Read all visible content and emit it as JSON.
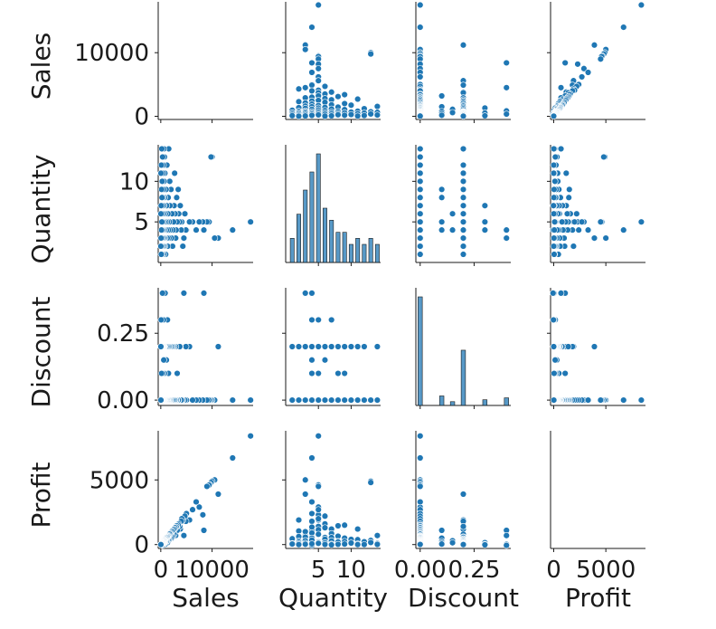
{
  "chart_data": {
    "type": "scatter",
    "chart_kind": "pairplot",
    "diagonal": "histogram",
    "color": "#1f77b4",
    "variables": [
      "Sales",
      "Quantity",
      "Discount",
      "Profit"
    ],
    "axes": {
      "Sales": {
        "range": [
          -500,
          18000
        ],
        "ticks": [
          0,
          10000
        ],
        "tick_labels": [
          "0",
          "10000"
        ]
      },
      "Quantity": {
        "range": [
          0,
          14.5
        ],
        "ticks": [
          5,
          10
        ],
        "tick_labels": [
          "5",
          "10"
        ]
      },
      "Discount": {
        "range": [
          -0.02,
          0.42
        ],
        "ticks": [
          0.0,
          0.25
        ],
        "tick_labels": [
          "0.00",
          "0.25"
        ]
      },
      "Profit": {
        "range": [
          -300,
          8800
        ],
        "ticks": [
          0,
          5000
        ],
        "tick_labels": [
          "0",
          "5000"
        ]
      }
    },
    "x_axis_labels": [
      "Sales",
      "Quantity",
      "Discount",
      "Profit"
    ],
    "y_axis_labels": [
      "Sales",
      "Quantity",
      "Discount",
      "Profit"
    ],
    "grid": false,
    "legend": "none",
    "points": [
      {
        "Sales": 17500,
        "Quantity": 5,
        "Discount": 0.0,
        "Profit": 8400
      },
      {
        "Sales": 14000,
        "Quantity": 4,
        "Discount": 0.0,
        "Profit": 6700
      },
      {
        "Sales": 11200,
        "Quantity": 3,
        "Discount": 0.2,
        "Profit": 3900
      },
      {
        "Sales": 10500,
        "Quantity": 3,
        "Discount": 0.0,
        "Profit": 5000
      },
      {
        "Sales": 10000,
        "Quantity": 13,
        "Discount": 0.0,
        "Profit": 4900
      },
      {
        "Sales": 9800,
        "Quantity": 13,
        "Discount": 0.0,
        "Profit": 4800
      },
      {
        "Sales": 9500,
        "Quantity": 5,
        "Discount": 0.0,
        "Profit": 4650
      },
      {
        "Sales": 9400,
        "Quantity": 5,
        "Discount": 0.0,
        "Profit": 4600
      },
      {
        "Sales": 9000,
        "Quantity": 5,
        "Discount": 0.0,
        "Profit": 4500
      },
      {
        "Sales": 8400,
        "Quantity": 4,
        "Discount": 0.4,
        "Profit": 1100
      },
      {
        "Sales": 8200,
        "Quantity": 5,
        "Discount": 0.0,
        "Profit": 2300
      },
      {
        "Sales": 7500,
        "Quantity": 5,
        "Discount": 0.0,
        "Profit": 2900
      },
      {
        "Sales": 6900,
        "Quantity": 4,
        "Discount": 0.0,
        "Profit": 3300
      },
      {
        "Sales": 6200,
        "Quantity": 5,
        "Discount": 0.0,
        "Profit": 2700
      },
      {
        "Sales": 5600,
        "Quantity": 5,
        "Discount": 0.2,
        "Profit": 1900
      },
      {
        "Sales": 5000,
        "Quantity": 4,
        "Discount": 0.0,
        "Profit": 2400
      },
      {
        "Sales": 4900,
        "Quantity": 4,
        "Discount": 0.2,
        "Profit": 1800
      },
      {
        "Sales": 4700,
        "Quantity": 6,
        "Discount": 0.0,
        "Profit": 2200
      },
      {
        "Sales": 4500,
        "Quantity": 3,
        "Discount": 0.4,
        "Profit": 700
      },
      {
        "Sales": 4300,
        "Quantity": 2,
        "Discount": 0.0,
        "Profit": 1900
      },
      {
        "Sales": 4100,
        "Quantity": 5,
        "Discount": 0.0,
        "Profit": 2000
      },
      {
        "Sales": 4000,
        "Quantity": 4,
        "Discount": 0.0,
        "Profit": 1800
      },
      {
        "Sales": 3800,
        "Quantity": 7,
        "Discount": 0.2,
        "Profit": 1200
      },
      {
        "Sales": 3700,
        "Quantity": 5,
        "Discount": 0.2,
        "Profit": 1400
      },
      {
        "Sales": 3500,
        "Quantity": 6,
        "Discount": 0.0,
        "Profit": 1600
      },
      {
        "Sales": 3400,
        "Quantity": 9,
        "Discount": 0.0,
        "Profit": 1500
      },
      {
        "Sales": 3200,
        "Quantity": 5,
        "Discount": 0.1,
        "Profit": 1100
      },
      {
        "Sales": 3100,
        "Quantity": 8,
        "Discount": 0.0,
        "Profit": 1450
      },
      {
        "Sales": 3000,
        "Quantity": 4,
        "Discount": 0.0,
        "Profit": 1350
      },
      {
        "Sales": 2900,
        "Quantity": 3,
        "Discount": 0.2,
        "Profit": 700
      },
      {
        "Sales": 2800,
        "Quantity": 6,
        "Discount": 0.0,
        "Profit": 1300
      },
      {
        "Sales": 2700,
        "Quantity": 11,
        "Discount": 0.0,
        "Profit": 1200
      },
      {
        "Sales": 2600,
        "Quantity": 7,
        "Discount": 0.2,
        "Profit": 800
      },
      {
        "Sales": 2500,
        "Quantity": 5,
        "Discount": 0.0,
        "Profit": 1150
      },
      {
        "Sales": 2400,
        "Quantity": 4,
        "Discount": 0.2,
        "Profit": 600
      },
      {
        "Sales": 2300,
        "Quantity": 2,
        "Discount": 0.0,
        "Profit": 1050
      },
      {
        "Sales": 2200,
        "Quantity": 6,
        "Discount": 0.2,
        "Profit": 550
      },
      {
        "Sales": 2100,
        "Quantity": 3,
        "Discount": 0.0,
        "Profit": 1000
      },
      {
        "Sales": 2000,
        "Quantity": 9,
        "Discount": 0.2,
        "Profit": 450
      },
      {
        "Sales": 1900,
        "Quantity": 4,
        "Discount": 0.0,
        "Profit": 900
      },
      {
        "Sales": 1800,
        "Quantity": 7,
        "Discount": 0.0,
        "Profit": 850
      },
      {
        "Sales": 1750,
        "Quantity": 10,
        "Discount": 0.2,
        "Profit": 400
      },
      {
        "Sales": 1700,
        "Quantity": 5,
        "Discount": 0.0,
        "Profit": 800
      },
      {
        "Sales": 1600,
        "Quantity": 3,
        "Discount": 0.2,
        "Profit": 350
      },
      {
        "Sales": 1550,
        "Quantity": 14,
        "Discount": 0.0,
        "Profit": 700
      },
      {
        "Sales": 1500,
        "Quantity": 4,
        "Discount": 0.1,
        "Profit": 500
      },
      {
        "Sales": 1450,
        "Quantity": 8,
        "Discount": 0.0,
        "Profit": 650
      },
      {
        "Sales": 1400,
        "Quantity": 6,
        "Discount": 0.2,
        "Profit": 300
      },
      {
        "Sales": 1350,
        "Quantity": 2,
        "Discount": 0.0,
        "Profit": 620
      },
      {
        "Sales": 1300,
        "Quantity": 5,
        "Discount": 0.3,
        "Profit": 150
      },
      {
        "Sales": 1250,
        "Quantity": 3,
        "Discount": 0.0,
        "Profit": 580
      },
      {
        "Sales": 1200,
        "Quantity": 12,
        "Discount": 0.2,
        "Profit": 250
      },
      {
        "Sales": 1150,
        "Quantity": 7,
        "Discount": 0.0,
        "Profit": 540
      },
      {
        "Sales": 1100,
        "Quantity": 4,
        "Discount": 0.15,
        "Profit": 300
      },
      {
        "Sales": 1050,
        "Quantity": 9,
        "Discount": 0.0,
        "Profit": 500
      },
      {
        "Sales": 1000,
        "Quantity": 5,
        "Discount": 0.2,
        "Profit": 200
      },
      {
        "Sales": 950,
        "Quantity": 1,
        "Discount": 0.0,
        "Profit": 450
      },
      {
        "Sales": 900,
        "Quantity": 6,
        "Discount": 0.0,
        "Profit": 420
      },
      {
        "Sales": 850,
        "Quantity": 3,
        "Discount": 0.4,
        "Profit": 20
      },
      {
        "Sales": 800,
        "Quantity": 11,
        "Discount": 0.0,
        "Profit": 380
      },
      {
        "Sales": 780,
        "Quantity": 2,
        "Discount": 0.2,
        "Profit": 150
      },
      {
        "Sales": 760,
        "Quantity": 8,
        "Discount": 0.1,
        "Profit": 250
      },
      {
        "Sales": 740,
        "Quantity": 4,
        "Discount": 0.0,
        "Profit": 350
      },
      {
        "Sales": 720,
        "Quantity": 13,
        "Discount": 0.0,
        "Profit": 320
      },
      {
        "Sales": 700,
        "Quantity": 5,
        "Discount": 0.2,
        "Profit": 120
      },
      {
        "Sales": 680,
        "Quantity": 3,
        "Discount": 0.0,
        "Profit": 300
      },
      {
        "Sales": 660,
        "Quantity": 10,
        "Discount": 0.2,
        "Profit": 100
      },
      {
        "Sales": 640,
        "Quantity": 7,
        "Discount": 0.0,
        "Profit": 290
      },
      {
        "Sales": 620,
        "Quantity": 14,
        "Discount": 0.2,
        "Profit": 90
      },
      {
        "Sales": 600,
        "Quantity": 2,
        "Discount": 0.0,
        "Profit": 270
      },
      {
        "Sales": 580,
        "Quantity": 6,
        "Discount": 0.15,
        "Profit": 140
      },
      {
        "Sales": 560,
        "Quantity": 1,
        "Discount": 0.2,
        "Profit": 80
      },
      {
        "Sales": 540,
        "Quantity": 9,
        "Discount": 0.0,
        "Profit": 240
      },
      {
        "Sales": 520,
        "Quantity": 4,
        "Discount": 0.3,
        "Profit": 20
      },
      {
        "Sales": 500,
        "Quantity": 12,
        "Discount": 0.0,
        "Profit": 220
      },
      {
        "Sales": 480,
        "Quantity": 3,
        "Discount": 0.2,
        "Profit": 60
      },
      {
        "Sales": 460,
        "Quantity": 8,
        "Discount": 0.0,
        "Profit": 200
      },
      {
        "Sales": 440,
        "Quantity": 5,
        "Discount": 0.1,
        "Profit": 120
      },
      {
        "Sales": 420,
        "Quantity": 11,
        "Discount": 0.2,
        "Profit": 50
      },
      {
        "Sales": 400,
        "Quantity": 2,
        "Discount": 0.0,
        "Profit": 180
      },
      {
        "Sales": 380,
        "Quantity": 7,
        "Discount": 0.2,
        "Profit": 40
      },
      {
        "Sales": 360,
        "Quantity": 13,
        "Discount": 0.0,
        "Profit": 160
      },
      {
        "Sales": 340,
        "Quantity": 4,
        "Discount": 0.4,
        "Profit": -60
      },
      {
        "Sales": 320,
        "Quantity": 6,
        "Discount": 0.0,
        "Profit": 140
      },
      {
        "Sales": 300,
        "Quantity": 1,
        "Discount": 0.2,
        "Profit": 30
      },
      {
        "Sales": 280,
        "Quantity": 10,
        "Discount": 0.0,
        "Profit": 120
      },
      {
        "Sales": 260,
        "Quantity": 3,
        "Discount": 0.0,
        "Profit": 110
      },
      {
        "Sales": 240,
        "Quantity": 8,
        "Discount": 0.2,
        "Profit": 20
      },
      {
        "Sales": 220,
        "Quantity": 5,
        "Discount": 0.0,
        "Profit": 95
      },
      {
        "Sales": 200,
        "Quantity": 14,
        "Discount": 0.2,
        "Profit": 15
      },
      {
        "Sales": 180,
        "Quantity": 2,
        "Discount": 0.0,
        "Profit": 80
      },
      {
        "Sales": 160,
        "Quantity": 9,
        "Discount": 0.1,
        "Profit": 40
      },
      {
        "Sales": 140,
        "Quantity": 4,
        "Discount": 0.0,
        "Profit": 60
      },
      {
        "Sales": 120,
        "Quantity": 12,
        "Discount": 0.2,
        "Profit": 5
      },
      {
        "Sales": 100,
        "Quantity": 1,
        "Discount": 0.0,
        "Profit": 45
      },
      {
        "Sales": 80,
        "Quantity": 7,
        "Discount": 0.3,
        "Profit": -20
      },
      {
        "Sales": 60,
        "Quantity": 3,
        "Discount": 0.0,
        "Profit": 25
      },
      {
        "Sales": 40,
        "Quantity": 11,
        "Discount": 0.2,
        "Profit": 2
      },
      {
        "Sales": 30,
        "Quantity": 6,
        "Discount": 0.0,
        "Profit": 12
      },
      {
        "Sales": 20,
        "Quantity": 2,
        "Discount": 0.2,
        "Profit": 3
      }
    ]
  }
}
